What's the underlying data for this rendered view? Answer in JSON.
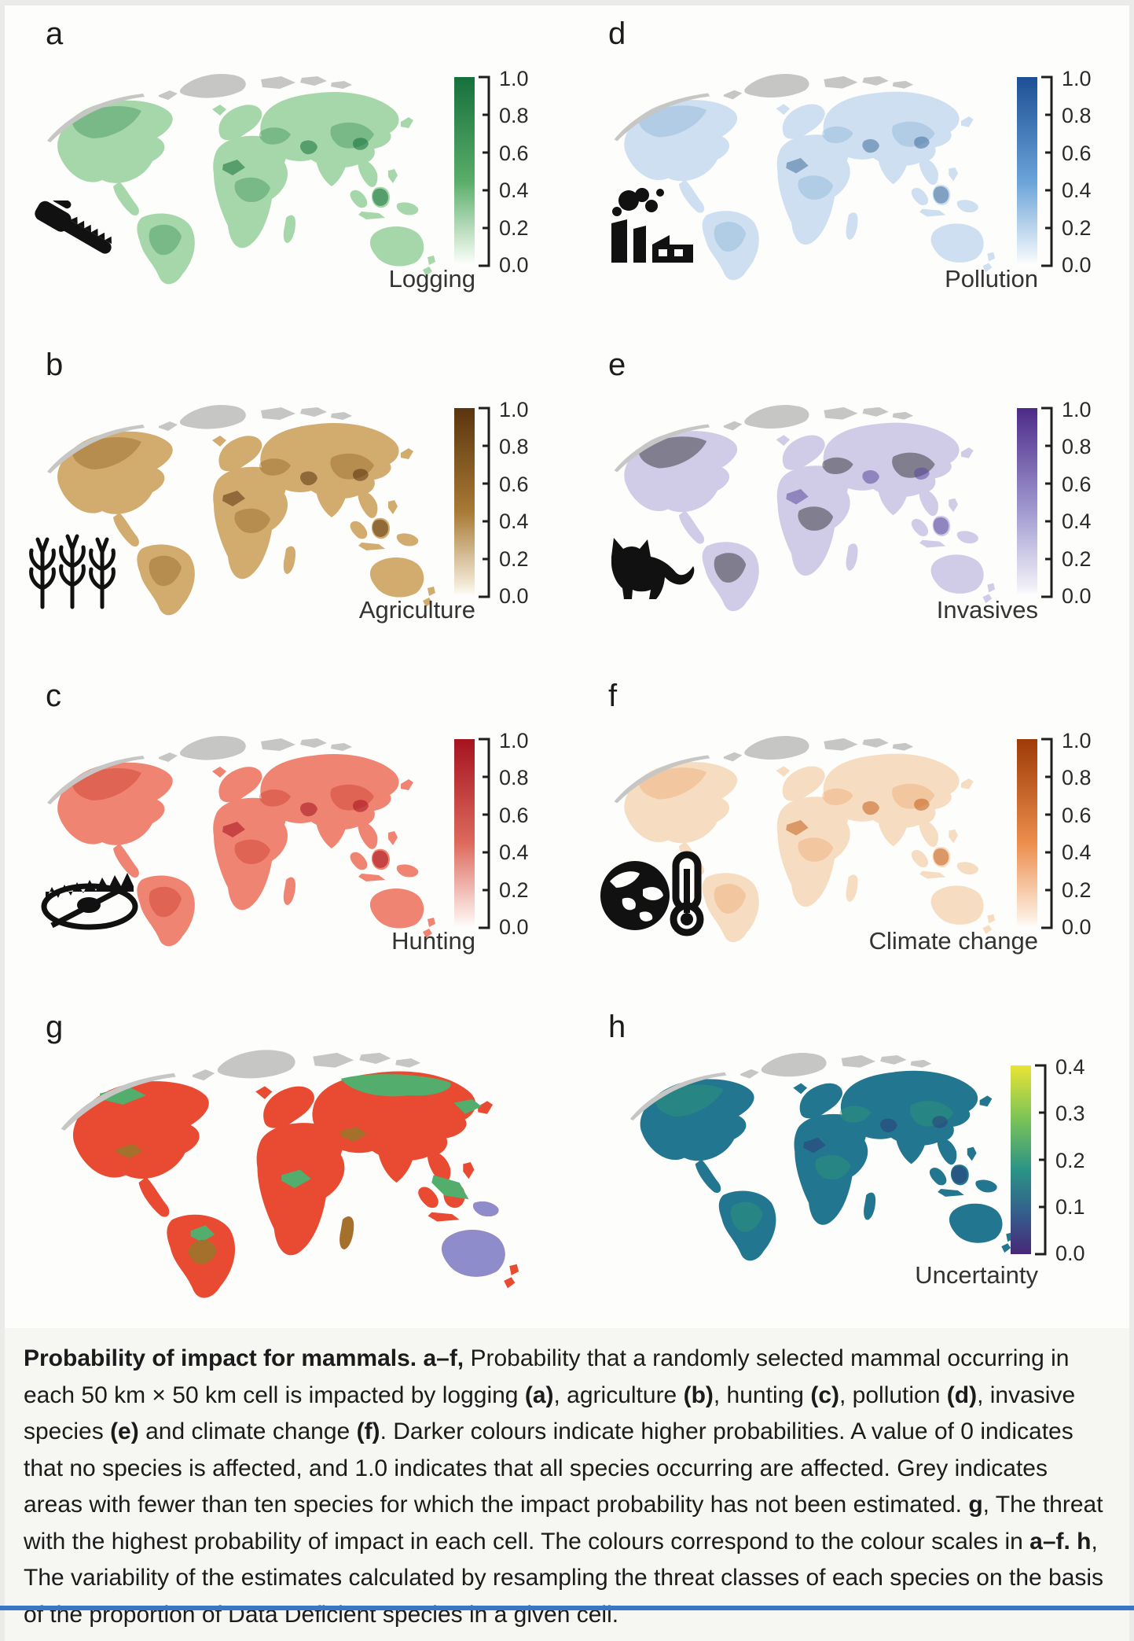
{
  "figure": {
    "panels": [
      {
        "letter": "a",
        "title": "Logging",
        "icon": "chainsaw-icon",
        "scale_ticks": [
          "1.0",
          "0.8",
          "0.6",
          "0.4",
          "0.2",
          "0.0"
        ],
        "gradient": [
          "#15713b",
          "#5aad68 55%",
          "#e9f5e8 94%",
          "#ffffff"
        ],
        "map_base": "#a6d7aa",
        "map_dark": "#2e8a4f",
        "map_dark2": "#15713b"
      },
      {
        "letter": "b",
        "title": "Agriculture",
        "icon": "corn-icon",
        "scale_ticks": [
          "1.0",
          "0.8",
          "0.6",
          "0.4",
          "0.2",
          "0.0"
        ],
        "gradient": [
          "#5a340e",
          "#a87a35 55%",
          "#f3ead7 94%",
          "#ffffff"
        ],
        "map_base": "#d2ab6e",
        "map_dark": "#8a5d1e",
        "map_dark2": "#5a340e"
      },
      {
        "letter": "c",
        "title": "Hunting",
        "icon": "trap-icon",
        "scale_ticks": [
          "1.0",
          "0.8",
          "0.6",
          "0.4",
          "0.2",
          "0.0"
        ],
        "gradient": [
          "#a5131f",
          "#dd6a5c 55%",
          "#fbe9e5 94%",
          "#ffffff"
        ],
        "map_base": "#ef8472",
        "map_dark": "#c93226",
        "map_dark2": "#a5131f"
      },
      {
        "letter": "d",
        "title": "Pollution",
        "icon": "factory-icon",
        "scale_ticks": [
          "1.0",
          "0.8",
          "0.6",
          "0.4",
          "0.2",
          "0.0"
        ],
        "gradient": [
          "#1c4f95",
          "#6aa3d8 55%",
          "#e8f1f8 94%",
          "#ffffff"
        ],
        "map_base": "#cddff0",
        "map_dark": "#86aed5",
        "map_dark2": "#44709f"
      },
      {
        "letter": "e",
        "title": "Invasives",
        "icon": "cat-icon",
        "scale_ticks": [
          "1.0",
          "0.8",
          "0.6",
          "0.4",
          "0.2",
          "0.0"
        ],
        "gradient": [
          "#4c2a88",
          "#a29bd1 55%",
          "#eeedf6 94%",
          "#ffffff"
        ],
        "map_base": "#d0cce8",
        "map_dark": "#9archive",
        "map_dark_fix": "",
        "map_dark_": "",
        "map_darkA": "#948cc6",
        "map_dark2": "#5c4a9c"
      },
      {
        "letter": "f",
        "title": "Climate change",
        "icon": "globe-thermometer-icon",
        "scale_ticks": [
          "1.0",
          "0.8",
          "0.6",
          "0.4",
          "0.2",
          "0.0"
        ],
        "gradient": [
          "#9e3a07",
          "#ec8e4c 55%",
          "#fcebdc 94%",
          "#ffffff"
        ],
        "map_base": "#f6ddc1",
        "map_dark": "#eda469",
        "map_dark2": "#c75f1e"
      },
      {
        "letter": "g",
        "legend_colors": {
          "hunting": "#e84a32",
          "logging": "#53ad6d",
          "agriculture": "#a5702b",
          "invasives": "#8e8cca"
        }
      },
      {
        "letter": "h",
        "title": "Uncertainty",
        "scale_ticks": [
          "0.4",
          "0.3",
          "0.2",
          "0.1",
          "0.0"
        ],
        "gradient": [
          "#e9e434",
          "#7cc457 28%",
          "#2a9287 56%",
          "#365a8c 80%",
          "#472777"
        ],
        "map_base": "#23768f",
        "map_dark": "#2f9f72",
        "map_dark2": "#2b3f78"
      }
    ],
    "caption_segments": [
      {
        "bold": true,
        "text": "Probability of impact for mammals. a–f,"
      },
      {
        "bold": false,
        "text": " Probability that a randomly selected mammal occurring in each 50 km × 50 km cell is impacted by logging "
      },
      {
        "bold": true,
        "text": "(a)"
      },
      {
        "bold": false,
        "text": ", agriculture "
      },
      {
        "bold": true,
        "text": "(b)"
      },
      {
        "bold": false,
        "text": ", hunting "
      },
      {
        "bold": true,
        "text": "(c)"
      },
      {
        "bold": false,
        "text": ", pollution "
      },
      {
        "bold": true,
        "text": "(d)"
      },
      {
        "bold": false,
        "text": ", invasive species "
      },
      {
        "bold": true,
        "text": "(e)"
      },
      {
        "bold": false,
        "text": " and climate change "
      },
      {
        "bold": true,
        "text": "(f)"
      },
      {
        "bold": false,
        "text": ". Darker colours indicate higher probabilities. A value of 0 indicates that no species is affected, and 1.0 indicates that all species occurring are affected. Grey indicates areas with fewer than ten species for which the impact probability has not been estimated. "
      },
      {
        "bold": true,
        "text": "g"
      },
      {
        "bold": false,
        "text": ", The threat with the highest probability of impact in each cell. The colours correspond to the colour scales in "
      },
      {
        "bold": true,
        "text": "a–f. h"
      },
      {
        "bold": false,
        "text": ", The variability of the estimates calculated by resampling the threat classes of each species on the basis of the proportion of Data Deficient species in a given cell."
      }
    ]
  },
  "colors": {
    "bottom_bar": "#3a76c8",
    "page_edge": "#ebebe9",
    "arctic_grey": "#c6c6c5"
  }
}
